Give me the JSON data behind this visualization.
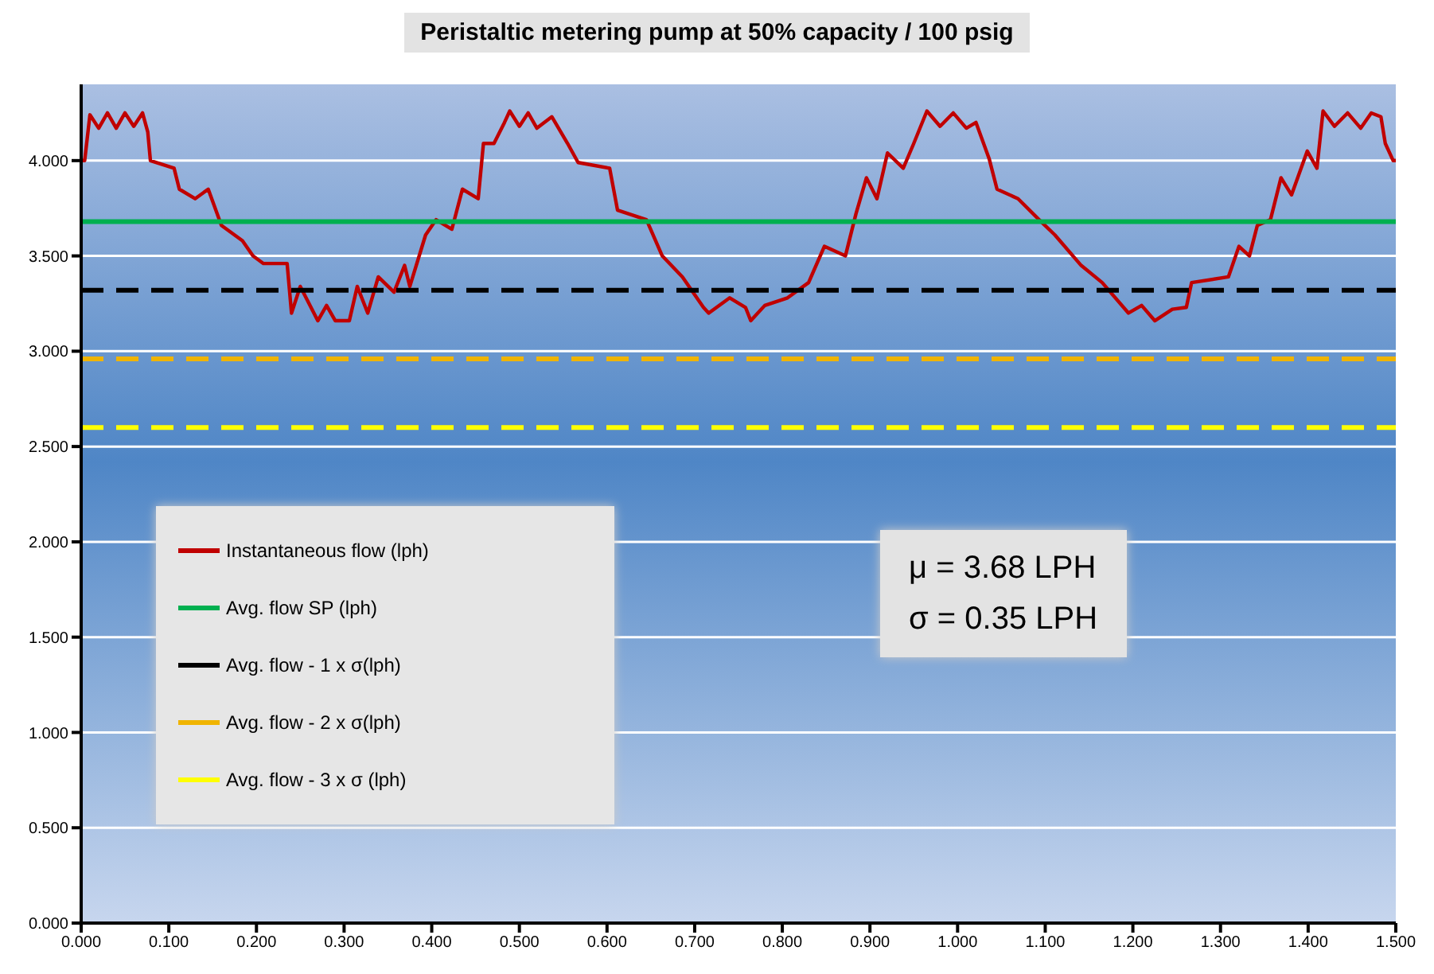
{
  "chart_data": {
    "type": "line",
    "title": "Peristaltic metering pump at 50% capacity / 100 psig",
    "xlim": [
      0,
      1.5
    ],
    "ylim": [
      0,
      4.4
    ],
    "xticks": [
      {
        "value": 0,
        "label": "0.000"
      },
      {
        "value": 0.1,
        "label": "0.100"
      },
      {
        "value": 0.2,
        "label": "0.200"
      },
      {
        "value": 0.3,
        "label": "0.300"
      },
      {
        "value": 0.4,
        "label": "0.400"
      },
      {
        "value": 0.5,
        "label": "0.500"
      },
      {
        "value": 0.6,
        "label": "0.600"
      },
      {
        "value": 0.7,
        "label": "0.700"
      },
      {
        "value": 0.8,
        "label": "0.800"
      },
      {
        "value": 0.9,
        "label": "0.900"
      },
      {
        "value": 1,
        "label": "1.000"
      },
      {
        "value": 1.1,
        "label": "1.100"
      },
      {
        "value": 1.2,
        "label": "1.200"
      },
      {
        "value": 1.3,
        "label": "1.300"
      },
      {
        "value": 1.4,
        "label": "1.400"
      },
      {
        "value": 1.5,
        "label": "1.500"
      }
    ],
    "yticks": [
      {
        "value": 0,
        "label": "0.000"
      },
      {
        "value": 0.5,
        "label": "0.500"
      },
      {
        "value": 1,
        "label": "1.000"
      },
      {
        "value": 1.5,
        "label": "1.500"
      },
      {
        "value": 2,
        "label": "2.000"
      },
      {
        "value": 2.5,
        "label": "2.500"
      },
      {
        "value": 3,
        "label": "3.000"
      },
      {
        "value": 3.5,
        "label": "3.500"
      },
      {
        "value": 4,
        "label": "4.000"
      }
    ],
    "grid": "y",
    "legend": "left",
    "marker": "none",
    "series": [
      {
        "name": "Instantaneous flow (lph)",
        "color": "#c00000",
        "line_style": "solid",
        "x": [
          0,
          0.004,
          0.01,
          0.02,
          0.03,
          0.04,
          0.05,
          0.06,
          0.07,
          0.076,
          0.079,
          0.106,
          0.112,
          0.13,
          0.145,
          0.16,
          0.184,
          0.196,
          0.208,
          0.235,
          0.24,
          0.25,
          0.27,
          0.28,
          0.29,
          0.306,
          0.315,
          0.327,
          0.339,
          0.357,
          0.369,
          0.375,
          0.393,
          0.405,
          0.423,
          0.435,
          0.453,
          0.459,
          0.471,
          0.483,
          0.489,
          0.5,
          0.51,
          0.52,
          0.537,
          0.555,
          0.567,
          0.603,
          0.612,
          0.645,
          0.663,
          0.686,
          0.71,
          0.716,
          0.74,
          0.758,
          0.764,
          0.78,
          0.806,
          0.83,
          0.848,
          0.872,
          0.884,
          0.896,
          0.908,
          0.92,
          0.938,
          0.95,
          0.965,
          0.98,
          0.995,
          1.01,
          1.021,
          1.036,
          1.045,
          1.069,
          1.093,
          1.111,
          1.141,
          1.165,
          1.195,
          1.21,
          1.225,
          1.245,
          1.261,
          1.267,
          1.309,
          1.321,
          1.333,
          1.342,
          1.357,
          1.369,
          1.381,
          1.399,
          1.41,
          1.417,
          1.43,
          1.445,
          1.46,
          1.472,
          1.483,
          1.488,
          1.497,
          1.5
        ],
        "values": [
          4.0,
          4.0,
          4.24,
          4.17,
          4.25,
          4.17,
          4.25,
          4.18,
          4.25,
          4.15,
          4.0,
          3.96,
          3.85,
          3.8,
          3.85,
          3.66,
          3.58,
          3.5,
          3.46,
          3.46,
          3.2,
          3.34,
          3.16,
          3.24,
          3.16,
          3.16,
          3.34,
          3.2,
          3.39,
          3.31,
          3.45,
          3.34,
          3.61,
          3.69,
          3.64,
          3.85,
          3.8,
          4.09,
          4.09,
          4.2,
          4.26,
          4.18,
          4.25,
          4.17,
          4.23,
          4.09,
          3.99,
          3.96,
          3.74,
          3.69,
          3.5,
          3.39,
          3.23,
          3.2,
          3.28,
          3.23,
          3.16,
          3.24,
          3.28,
          3.36,
          3.55,
          3.5,
          3.72,
          3.91,
          3.8,
          4.04,
          3.96,
          4.09,
          4.26,
          4.18,
          4.25,
          4.17,
          4.2,
          4.01,
          3.85,
          3.8,
          3.69,
          3.61,
          3.45,
          3.36,
          3.2,
          3.24,
          3.16,
          3.22,
          3.23,
          3.36,
          3.39,
          3.55,
          3.5,
          3.66,
          3.69,
          3.91,
          3.82,
          4.05,
          3.96,
          4.26,
          4.18,
          4.25,
          4.17,
          4.25,
          4.23,
          4.09,
          4.0,
          4.0
        ]
      },
      {
        "name": "Avg. flow SP (lph)",
        "color": "#00b050",
        "line_style": "solid",
        "x": [
          0,
          1.5
        ],
        "values": [
          3.68,
          3.68
        ]
      },
      {
        "name": "Avg. flow - 1 x σ(lph)",
        "color": "#000000",
        "line_style": "dashed",
        "x": [
          0,
          1.5
        ],
        "values": [
          3.32,
          3.32
        ]
      },
      {
        "name": "Avg. flow  - 2 x σ(lph)",
        "color": "#f0b400",
        "line_style": "dashed",
        "x": [
          0,
          1.5
        ],
        "values": [
          2.96,
          2.96
        ]
      },
      {
        "name": "Avg. flow - 3 x σ (lph)",
        "color": "#ffff00",
        "line_style": "dashed",
        "x": [
          0,
          1.5
        ],
        "values": [
          2.6,
          2.6
        ]
      }
    ],
    "annotations": [
      "μ  = 3.68 LPH",
      "σ = 0.35 LPH"
    ]
  }
}
